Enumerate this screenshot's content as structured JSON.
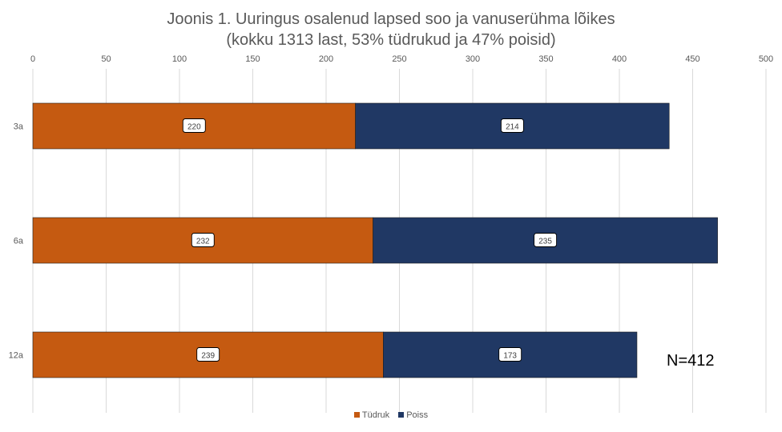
{
  "chart_data": {
    "type": "bar",
    "orientation": "horizontal",
    "stacked": true,
    "title_line1": "Joonis 1. Uuringus osalenud lapsed soo ja vanuserühma lõikes",
    "title_line2": "(kokku 1313 last, 53% tüdrukud ja 47% poisid)",
    "categories": [
      "3a",
      "6a",
      "12a"
    ],
    "series": [
      {
        "name": "Tüdruk",
        "values": [
          220,
          232,
          239
        ],
        "color": "#c55a11"
      },
      {
        "name": "Poiss",
        "values": [
          214,
          235,
          173
        ],
        "color": "#203864"
      }
    ],
    "xlim": [
      0,
      500
    ],
    "x_ticks": [
      0,
      50,
      100,
      150,
      200,
      250,
      300,
      350,
      400,
      450,
      500
    ],
    "x_axis_position": "top",
    "grid": true,
    "legend_position": "bottom",
    "annotation": "N=412"
  }
}
